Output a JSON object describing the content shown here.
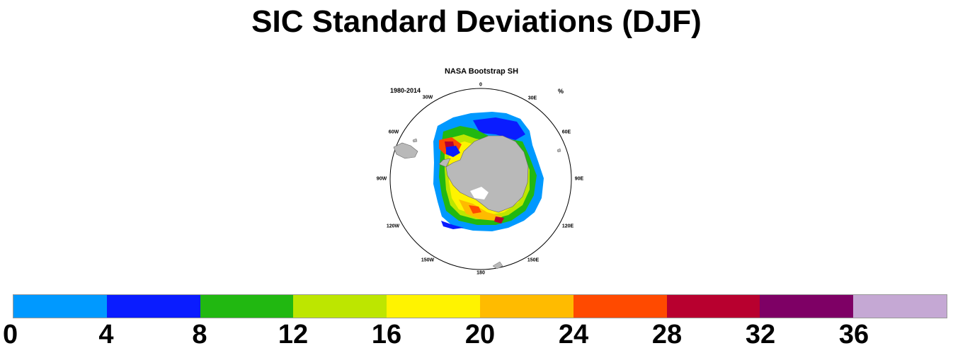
{
  "title": "SIC Standard Deviations (DJF)",
  "panel": {
    "title": "NASA Bootstrap SH",
    "period": "1980-2014",
    "units": "%",
    "longitude_labels": [
      "0",
      "30E",
      "60E",
      "90E",
      "120E",
      "150E",
      "180",
      "150W",
      "120W",
      "90W",
      "60W",
      "30W"
    ]
  },
  "colorbar": {
    "tick_labels": [
      "0",
      "4",
      "8",
      "12",
      "16",
      "20",
      "24",
      "28",
      "32",
      "36"
    ],
    "colors": [
      "#0099ff",
      "#0a1cff",
      "#21b811",
      "#bde600",
      "#fff300",
      "#ffbb00",
      "#ff4a00",
      "#b8002f",
      "#7e0065",
      "#c5a8d4"
    ]
  },
  "map_colors": {
    "land": "#b9b9b9",
    "ocean": "#ffffff"
  }
}
